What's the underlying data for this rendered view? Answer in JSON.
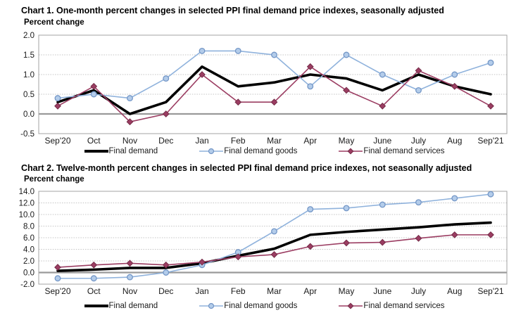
{
  "figure": {
    "background_color": "#ffffff",
    "frame_color": "#a3a3a3",
    "gridline_color": "#c4c4c4",
    "zero_line_color": "#9a9a9a"
  },
  "chart_data": [
    {
      "type": "line",
      "title": "Chart 1. One-month percent changes in selected PPI final demand price indexes, seasonally adjusted",
      "axis_unit_label": "Percent change",
      "categories": [
        "Sep'20",
        "Oct",
        "Nov",
        "Dec",
        "Jan",
        "Feb",
        "Mar",
        "Apr",
        "May",
        "June",
        "July",
        "Aug",
        "Sep'21"
      ],
      "ylim": [
        -0.5,
        2.0
      ],
      "ytick_step": 0.5,
      "grid": true,
      "legend_position": "bottom",
      "series": [
        {
          "name": "Final demand",
          "color": "#000000",
          "line_width": 3.6,
          "marker": "none",
          "values": [
            0.3,
            0.6,
            0.0,
            0.3,
            1.2,
            0.7,
            0.8,
            1.0,
            0.9,
            0.6,
            1.0,
            0.7,
            0.5
          ]
        },
        {
          "name": "Final demand goods",
          "color": "#8FB2DC",
          "line_width": 1.6,
          "marker": "circle",
          "marker_fill": "#B3CCEA",
          "marker_stroke": "#7396C6",
          "values": [
            0.4,
            0.5,
            0.4,
            0.9,
            1.6,
            1.6,
            1.5,
            0.7,
            1.5,
            1.0,
            0.6,
            1.0,
            1.3
          ]
        },
        {
          "name": "Final demand services",
          "color": "#9B3D62",
          "line_width": 1.6,
          "marker": "diamond",
          "marker_fill": "#9B3D62",
          "marker_stroke": "#742B47",
          "values": [
            0.2,
            0.7,
            -0.2,
            0.0,
            1.0,
            0.3,
            0.3,
            1.2,
            0.6,
            0.2,
            1.1,
            0.7,
            0.2
          ]
        }
      ]
    },
    {
      "type": "line",
      "title": "Chart 2. Twelve-month percent changes in selected PPI final demand price indexes, not seasonally adjusted",
      "axis_unit_label": "Percent change",
      "categories": [
        "Sep'20",
        "Oct",
        "Nov",
        "Dec",
        "Jan",
        "Feb",
        "Mar",
        "Apr",
        "May",
        "June",
        "July",
        "Aug",
        "Sep'21"
      ],
      "ylim": [
        -2.0,
        14.0
      ],
      "ytick_step": 2.0,
      "grid": true,
      "legend_position": "bottom",
      "series": [
        {
          "name": "Final demand",
          "color": "#000000",
          "line_width": 3.6,
          "marker": "none",
          "values": [
            0.3,
            0.5,
            0.8,
            0.8,
            1.6,
            2.9,
            4.1,
            6.5,
            7.0,
            7.4,
            7.8,
            8.3,
            8.6
          ]
        },
        {
          "name": "Final demand goods",
          "color": "#8FB2DC",
          "line_width": 1.6,
          "marker": "circle",
          "marker_fill": "#B3CCEA",
          "marker_stroke": "#7396C6",
          "values": [
            -1.0,
            -1.0,
            -0.8,
            0.0,
            1.3,
            3.5,
            7.1,
            10.9,
            11.1,
            11.7,
            12.1,
            12.8,
            13.5
          ]
        },
        {
          "name": "Final demand services",
          "color": "#9B3D62",
          "line_width": 1.6,
          "marker": "diamond",
          "marker_fill": "#9B3D62",
          "marker_stroke": "#742B47",
          "values": [
            0.9,
            1.3,
            1.6,
            1.3,
            1.8,
            2.7,
            3.1,
            4.5,
            5.1,
            5.2,
            5.9,
            6.5,
            6.5
          ]
        }
      ]
    }
  ]
}
